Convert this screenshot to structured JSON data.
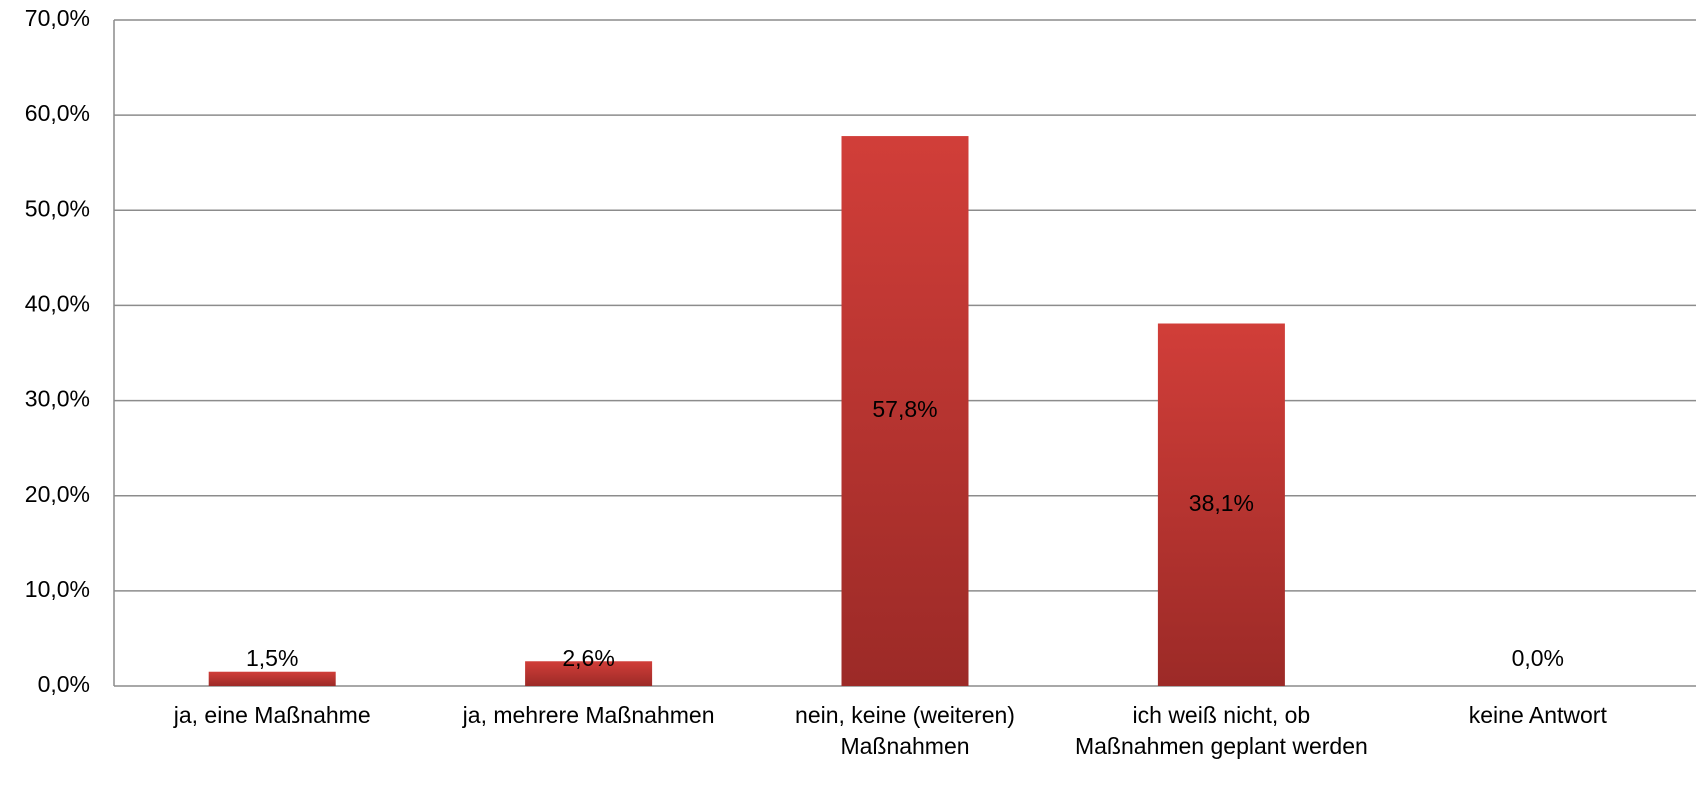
{
  "chart_data": {
    "type": "bar",
    "categories": [
      "ja, eine Maßnahme",
      "ja, mehrere Maßnahmen",
      "nein, keine (weiteren) Maßnahmen",
      "ich weiß nicht, ob Maßnahmen geplant werden",
      "keine Antwort"
    ],
    "values": [
      1.5,
      2.6,
      57.8,
      38.1,
      0.0
    ],
    "value_labels": [
      "1,5%",
      "2,6%",
      "57,8%",
      "38,1%",
      "0,0%"
    ],
    "color": "#c23632",
    "ylim": [
      0,
      70
    ],
    "yticks": [
      {
        "value": 0,
        "label": "0,0%"
      },
      {
        "value": 10,
        "label": "10,0%"
      },
      {
        "value": 20,
        "label": "20,0%"
      },
      {
        "value": 30,
        "label": "30,0%"
      },
      {
        "value": 40,
        "label": "40,0%"
      },
      {
        "value": 50,
        "label": "50,0%"
      },
      {
        "value": 60,
        "label": "60,0%"
      },
      {
        "value": 70,
        "label": "70,0%"
      }
    ],
    "grid": true
  }
}
